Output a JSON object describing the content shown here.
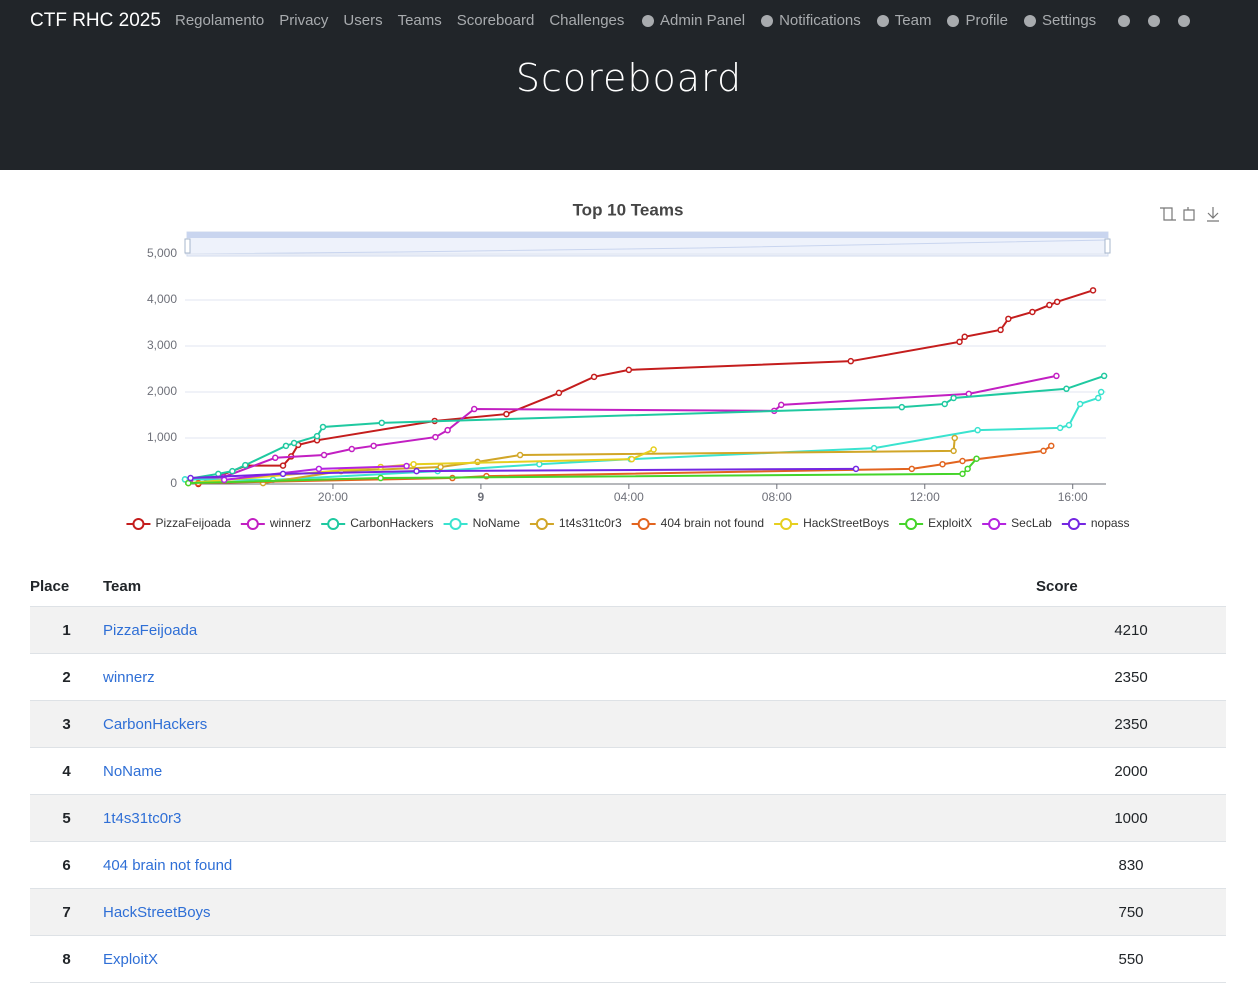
{
  "navbar": {
    "brand": "CTF RHC 2025",
    "links": [
      "Regolamento",
      "Privacy",
      "Users",
      "Teams",
      "Scoreboard",
      "Challenges"
    ],
    "right": [
      "Admin Panel",
      "Notifications",
      "Team",
      "Profile",
      "Settings"
    ]
  },
  "header": {
    "title": "Scoreboard"
  },
  "chart_data": {
    "type": "line",
    "title": "Top 10 Teams",
    "xlim": [
      16,
      40.9
    ],
    "ylim": [
      0,
      5000
    ],
    "xticks": [
      {
        "value": 20,
        "label": "20:00"
      },
      {
        "value": 24,
        "label": "9"
      },
      {
        "value": 28,
        "label": "04:00"
      },
      {
        "value": 32,
        "label": "08:00"
      },
      {
        "value": 36,
        "label": "12:00"
      },
      {
        "value": 40,
        "label": "16:00"
      }
    ],
    "yticks": [
      0,
      {
        "value": 1000,
        "label": "1,000"
      },
      {
        "value": 2000,
        "label": "2,000"
      },
      {
        "value": 3000,
        "label": "3,000"
      },
      {
        "value": 4000,
        "label": "4,000"
      },
      {
        "value": 5000,
        "label": "5,000"
      }
    ],
    "grid": true,
    "legend": "bottom",
    "series": [
      {
        "name": "PizzaFeijoada",
        "color": "#c41d1d",
        "x": [
          16.36,
          17.66,
          18.65,
          18.87,
          19.06,
          19.57,
          22.75,
          24.69,
          26.11,
          27.06,
          28.0,
          34.0,
          36.94,
          37.08,
          38.05,
          38.26,
          38.91,
          39.37,
          39.58,
          40.55
        ],
        "values": [
          0,
          400,
          400,
          600,
          850,
          950,
          1370,
          1520,
          1980,
          2330,
          2480,
          2670,
          3090,
          3200,
          3350,
          3590,
          3740,
          3890,
          3960,
          4210
        ]
      },
      {
        "name": "winnerz",
        "color": "#c21fc2",
        "x": [
          16.15,
          17.04,
          18.44,
          19.76,
          20.51,
          21.1,
          22.77,
          23.1,
          23.82,
          31.93,
          32.12,
          37.19,
          39.56
        ],
        "values": [
          100,
          150,
          570,
          630,
          760,
          830,
          1020,
          1170,
          1630,
          1590,
          1720,
          1960,
          2350
        ]
      },
      {
        "name": "CarbonHackers",
        "color": "#1fc9a0",
        "x": [
          16.0,
          16.9,
          17.28,
          17.63,
          18.73,
          18.95,
          19.57,
          19.73,
          21.32,
          35.38,
          36.54,
          36.78,
          39.83,
          40.85
        ],
        "values": [
          100,
          220,
          280,
          410,
          830,
          890,
          1040,
          1240,
          1330,
          1670,
          1740,
          1870,
          2070,
          2350
        ]
      },
      {
        "name": "NoName",
        "color": "#3ae3cf",
        "x": [
          16.0,
          18.38,
          22.83,
          25.58,
          28.05,
          34.63,
          37.43,
          39.66,
          39.9,
          40.2,
          40.69,
          40.77
        ],
        "values": [
          100,
          90,
          280,
          430,
          540,
          780,
          1170,
          1220,
          1280,
          1740,
          1870,
          2000
        ]
      },
      {
        "name": "1t4s31tc0r3",
        "color": "#d1a628",
        "x": [
          18.11,
          20.22,
          22.91,
          23.91,
          25.06,
          36.78,
          36.81
        ],
        "values": [
          20,
          280,
          370,
          480,
          630,
          720,
          1000
        ]
      },
      {
        "name": "404 brain not found",
        "color": "#e2641f",
        "x": [
          16.36,
          23.23,
          24.15,
          35.65,
          36.48,
          37.02,
          39.21,
          39.42
        ],
        "values": [
          20,
          130,
          170,
          330,
          430,
          500,
          720,
          830
        ]
      },
      {
        "name": "HackStreetBoys",
        "color": "#e6cf1f",
        "x": [
          16.09,
          21.29,
          22.18,
          28.08,
          28.67
        ],
        "values": [
          20,
          370,
          430,
          540,
          750
        ]
      },
      {
        "name": "ExploitX",
        "color": "#45d42a",
        "x": [
          16.09,
          21.29,
          37.02,
          37.16,
          37.4
        ],
        "values": [
          20,
          130,
          220,
          330,
          550
        ]
      },
      {
        "name": "SecLab",
        "color": "#b423e0",
        "x": [
          17.06,
          19.62,
          21.99
        ],
        "values": [
          90,
          330,
          390
        ]
      },
      {
        "name": "nopass",
        "color": "#7426e2",
        "x": [
          16.15,
          18.65,
          22.26,
          34.14
        ],
        "values": [
          130,
          220,
          280,
          330
        ]
      }
    ]
  },
  "scoreboard": {
    "columns": [
      "Place",
      "Team",
      "Score"
    ],
    "rows": [
      [
        1,
        "PizzaFeijoada",
        4210
      ],
      [
        2,
        "winnerz",
        2350
      ],
      [
        3,
        "CarbonHackers",
        2350
      ],
      [
        4,
        "NoName",
        2000
      ],
      [
        5,
        "1t4s31tc0r3",
        1000
      ],
      [
        6,
        "404 brain not found",
        830
      ],
      [
        7,
        "HackStreetBoys",
        750
      ],
      [
        8,
        "ExploitX",
        550
      ]
    ]
  }
}
